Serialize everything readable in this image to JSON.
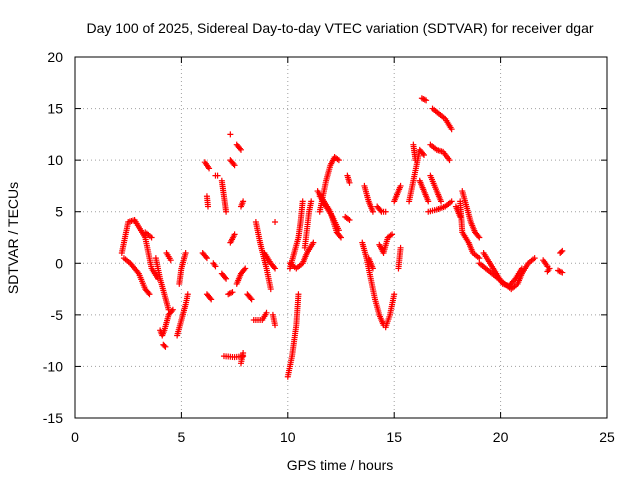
{
  "chart_data": {
    "type": "scatter",
    "title": "Day 100 of 2025, Sidereal Day-to-day VTEC variation (SDTVAR) for receiver dgar",
    "xlabel": "GPS time / hours",
    "ylabel": "SDTVAR / TECUs",
    "xlim": [
      0,
      25
    ],
    "ylim": [
      -15,
      20
    ],
    "xticks": [
      0,
      5,
      10,
      15,
      20,
      25
    ],
    "yticks": [
      -15,
      -10,
      -5,
      0,
      5,
      10,
      15,
      20
    ],
    "grid": true,
    "marker": "+",
    "color": "#ff0000",
    "segments": [
      [
        [
          2.2,
          1.0
        ],
        [
          2.5,
          4.0
        ],
        [
          2.8,
          4.2
        ],
        [
          3.3,
          2.5
        ],
        [
          3.6,
          -0.5
        ],
        [
          3.9,
          -1.5
        ]
      ],
      [
        [
          2.3,
          0.5
        ],
        [
          2.6,
          0.0
        ],
        [
          3.0,
          -1.0
        ],
        [
          3.3,
          -2.5
        ],
        [
          3.5,
          -3.0
        ]
      ],
      [
        [
          3.8,
          0.5
        ],
        [
          4.0,
          -1.5
        ],
        [
          4.2,
          -3.0
        ],
        [
          4.4,
          -4.5
        ]
      ],
      [
        [
          4.0,
          -6.5
        ],
        [
          4.1,
          -7.0
        ],
        [
          4.2,
          -6.5
        ],
        [
          4.4,
          -5.0
        ],
        [
          4.6,
          -4.5
        ]
      ],
      [
        [
          4.15,
          -7.9
        ],
        [
          4.25,
          -8.1
        ]
      ],
      [
        [
          4.8,
          -7.0
        ],
        [
          5.0,
          -5.5
        ],
        [
          5.2,
          -4.0
        ],
        [
          5.3,
          -3.0
        ]
      ],
      [
        [
          4.9,
          -2.0
        ],
        [
          5.0,
          -0.5
        ],
        [
          5.2,
          1.0
        ]
      ],
      [
        [
          4.3,
          1.0
        ],
        [
          4.5,
          0.3
        ]
      ],
      [
        [
          3.3,
          3.0
        ],
        [
          3.6,
          2.5
        ]
      ],
      [
        [
          6.1,
          9.8
        ],
        [
          6.3,
          9.2
        ]
      ],
      [
        [
          6.2,
          6.5
        ],
        [
          6.25,
          5.5
        ]
      ],
      [
        [
          6.0,
          1.0
        ],
        [
          6.2,
          0.5
        ]
      ],
      [
        [
          6.5,
          0.0
        ],
        [
          6.6,
          -0.3
        ]
      ],
      [
        [
          6.2,
          -3.0
        ],
        [
          6.4,
          -3.5
        ]
      ],
      [
        [
          6.6,
          8.5
        ],
        [
          6.7,
          8.5
        ]
      ],
      [
        [
          6.9,
          8.0
        ],
        [
          7.0,
          6.5
        ],
        [
          7.1,
          5.0
        ]
      ],
      [
        [
          7.3,
          12.5
        ]
      ],
      [
        [
          7.3,
          10.0
        ],
        [
          7.5,
          9.5
        ]
      ],
      [
        [
          7.6,
          11.5
        ],
        [
          7.8,
          11.0
        ]
      ],
      [
        [
          6.9,
          -1.0
        ],
        [
          7.1,
          -1.5
        ]
      ],
      [
        [
          7.3,
          2.0
        ],
        [
          7.5,
          2.8
        ]
      ],
      [
        [
          7.6,
          -2.0
        ],
        [
          7.8,
          -1.0
        ],
        [
          8.0,
          -0.5
        ]
      ],
      [
        [
          7.2,
          -3.0
        ],
        [
          7.4,
          -2.8
        ]
      ],
      [
        [
          7.0,
          -9.0
        ],
        [
          7.5,
          -9.1
        ],
        [
          7.9,
          -9.0
        ]
      ],
      [
        [
          7.8,
          -9.7
        ],
        [
          7.9,
          -8.7
        ]
      ],
      [
        [
          7.8,
          5.5
        ],
        [
          7.9,
          6.0
        ]
      ],
      [
        [
          8.1,
          -3.0
        ],
        [
          8.3,
          -3.5
        ]
      ],
      [
        [
          8.4,
          -5.5
        ],
        [
          8.8,
          -5.5
        ],
        [
          9.0,
          -4.8
        ]
      ],
      [
        [
          8.5,
          4.0
        ],
        [
          8.7,
          2.0
        ],
        [
          9.0,
          -0.5
        ],
        [
          9.2,
          -2.5
        ]
      ],
      [
        [
          8.9,
          1.0
        ],
        [
          9.2,
          0.0
        ],
        [
          9.4,
          -0.5
        ]
      ],
      [
        [
          9.4,
          4.0
        ]
      ],
      [
        [
          9.3,
          -5.0
        ],
        [
          9.4,
          -6.0
        ]
      ],
      [
        [
          10.0,
          -11.0
        ],
        [
          10.2,
          -9.0
        ],
        [
          10.4,
          -6.0
        ],
        [
          10.5,
          -3.0
        ]
      ],
      [
        [
          10.1,
          -0.5
        ],
        [
          10.3,
          1.0
        ],
        [
          10.5,
          2.5
        ],
        [
          10.6,
          4.0
        ],
        [
          10.7,
          6.0
        ]
      ],
      [
        [
          10.1,
          0.0
        ],
        [
          10.4,
          -0.5
        ],
        [
          10.7,
          0.0
        ],
        [
          10.9,
          1.0
        ],
        [
          11.2,
          2.0
        ]
      ],
      [
        [
          10.8,
          1.5
        ],
        [
          11.0,
          5.0
        ],
        [
          11.1,
          6.0
        ]
      ],
      [
        [
          11.5,
          5.0
        ],
        [
          11.8,
          8.0
        ],
        [
          12.0,
          9.5
        ],
        [
          12.2,
          10.3
        ],
        [
          12.4,
          10.0
        ]
      ],
      [
        [
          11.4,
          7.0
        ],
        [
          11.7,
          6.0
        ],
        [
          12.0,
          5.0
        ],
        [
          12.3,
          3.0
        ],
        [
          12.5,
          2.5
        ]
      ],
      [
        [
          11.5,
          6.5
        ],
        [
          11.8,
          5.5
        ],
        [
          12.1,
          4.5
        ],
        [
          12.4,
          3.2
        ]
      ],
      [
        [
          12.8,
          8.5
        ],
        [
          12.9,
          7.8
        ]
      ],
      [
        [
          12.7,
          4.5
        ],
        [
          12.9,
          4.2
        ]
      ],
      [
        [
          13.6,
          7.5
        ],
        [
          13.8,
          6.0
        ],
        [
          14.0,
          5.0
        ]
      ],
      [
        [
          14.2,
          5.5
        ],
        [
          14.4,
          5.0
        ],
        [
          14.6,
          5.0
        ]
      ],
      [
        [
          13.5,
          2.0
        ],
        [
          13.7,
          0.5
        ],
        [
          13.9,
          -1.5
        ],
        [
          14.1,
          -3.5
        ],
        [
          14.3,
          -5.0
        ],
        [
          14.5,
          -6.0
        ]
      ],
      [
        [
          14.6,
          -6.2
        ],
        [
          14.8,
          -5.0
        ],
        [
          15.0,
          -3.0
        ]
      ],
      [
        [
          14.3,
          1.8
        ],
        [
          14.5,
          1.0
        ],
        [
          14.7,
          2.5
        ],
        [
          14.9,
          2.8
        ]
      ],
      [
        [
          13.8,
          0.5
        ],
        [
          14.0,
          -0.5
        ]
      ],
      [
        [
          15.0,
          6.0
        ],
        [
          15.2,
          7.0
        ],
        [
          15.3,
          7.5
        ]
      ],
      [
        [
          15.2,
          -0.5
        ],
        [
          15.3,
          1.5
        ]
      ],
      [
        [
          15.7,
          6.0
        ],
        [
          16.0,
          9.0
        ],
        [
          16.2,
          11.0
        ],
        [
          16.4,
          10.5
        ]
      ],
      [
        [
          15.9,
          11.5
        ],
        [
          16.0,
          10.0
        ]
      ],
      [
        [
          16.2,
          8.0
        ],
        [
          16.4,
          7.0
        ],
        [
          16.6,
          6.0
        ]
      ],
      [
        [
          16.3,
          16.0
        ],
        [
          16.5,
          15.8
        ]
      ],
      [
        [
          16.8,
          15.0
        ],
        [
          17.1,
          14.5
        ],
        [
          17.4,
          14.0
        ],
        [
          17.7,
          13.0
        ]
      ],
      [
        [
          16.7,
          11.5
        ],
        [
          17.0,
          11.0
        ],
        [
          17.3,
          10.8
        ],
        [
          17.6,
          10.0
        ]
      ],
      [
        [
          16.7,
          8.5
        ],
        [
          17.0,
          7.0
        ],
        [
          17.2,
          6.0
        ]
      ],
      [
        [
          16.6,
          5.0
        ],
        [
          17.0,
          5.2
        ],
        [
          17.4,
          5.5
        ],
        [
          17.7,
          6.0
        ]
      ],
      [
        [
          17.9,
          5.5
        ],
        [
          18.1,
          4.5
        ]
      ],
      [
        [
          18.2,
          7.0
        ],
        [
          18.4,
          5.5
        ],
        [
          18.6,
          4.0
        ],
        [
          18.8,
          3.0
        ],
        [
          19.0,
          2.5
        ]
      ],
      [
        [
          18.1,
          6.0
        ],
        [
          18.2,
          3.0
        ],
        [
          18.5,
          2.0
        ],
        [
          18.7,
          1.0
        ],
        [
          19.0,
          0.5
        ]
      ],
      [
        [
          19.0,
          0.0
        ],
        [
          19.3,
          -0.5
        ],
        [
          19.6,
          -1.0
        ],
        [
          19.9,
          -1.5
        ],
        [
          20.2,
          -2.0
        ],
        [
          20.5,
          -2.5
        ],
        [
          20.8,
          -2.0
        ],
        [
          21.0,
          -1.0
        ],
        [
          21.3,
          0.0
        ],
        [
          21.6,
          0.5
        ]
      ],
      [
        [
          19.2,
          1.0
        ],
        [
          19.5,
          0.0
        ],
        [
          19.8,
          -1.0
        ],
        [
          20.1,
          -2.0
        ],
        [
          20.4,
          -2.2
        ],
        [
          20.7,
          -1.5
        ],
        [
          21.0,
          -0.5
        ]
      ],
      [
        [
          22.0,
          0.3
        ],
        [
          22.2,
          -0.3
        ]
      ],
      [
        [
          22.2,
          -0.8
        ],
        [
          22.3,
          -0.5
        ]
      ],
      [
        [
          22.8,
          1.0
        ],
        [
          22.9,
          1.2
        ]
      ],
      [
        [
          22.7,
          -0.7
        ],
        [
          22.9,
          -0.9
        ]
      ]
    ]
  }
}
